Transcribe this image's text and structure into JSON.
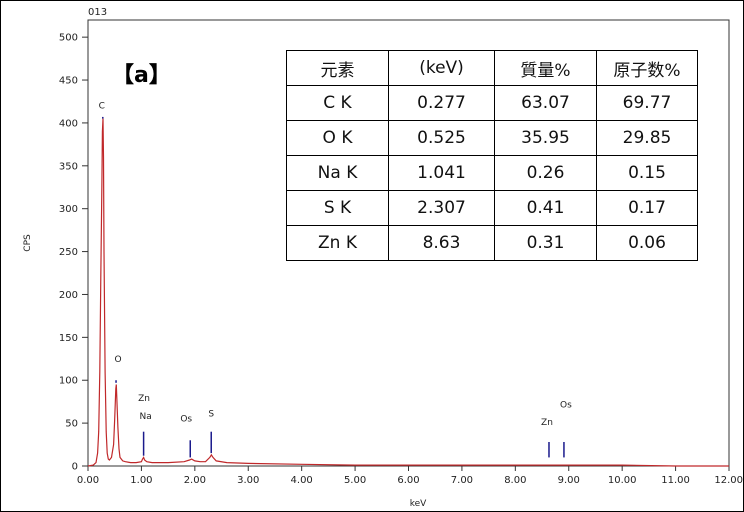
{
  "sample_id": "013",
  "panel_label": "【a】",
  "table": {
    "headers": [
      "元素",
      "(keV)",
      "質量%",
      "原子数%"
    ],
    "rows": [
      [
        "C  K",
        "0.277",
        "63.07",
        "69.77"
      ],
      [
        "O  K",
        "0.525",
        "35.95",
        "29.85"
      ],
      [
        "Na K",
        "1.041",
        "0.26",
        "0.15"
      ],
      [
        "S  K",
        "2.307",
        "0.41",
        "0.17"
      ],
      [
        "Zn K",
        "8.63",
        "0.31",
        "0.06"
      ]
    ]
  },
  "chart_data": {
    "type": "line",
    "xlabel": "keV",
    "ylabel": "CPS",
    "xlim": [
      0,
      12
    ],
    "ylim": [
      0,
      520
    ],
    "x_ticks": [
      "0.00",
      "1.00",
      "2.00",
      "3.00",
      "4.00",
      "5.00",
      "6.00",
      "7.00",
      "8.00",
      "9.00",
      "10.00",
      "11.00",
      "12.00"
    ],
    "y_ticks": [
      "0",
      "50",
      "100",
      "150",
      "200",
      "250",
      "300",
      "350",
      "400",
      "450",
      "500"
    ],
    "series_color": "#c0282a",
    "marker_color": "#1a1a8c",
    "grid": false,
    "spectrum": {
      "x": [
        0.0,
        0.1,
        0.15,
        0.18,
        0.2,
        0.22,
        0.24,
        0.26,
        0.27,
        0.28,
        0.29,
        0.3,
        0.32,
        0.34,
        0.36,
        0.38,
        0.4,
        0.44,
        0.48,
        0.5,
        0.52,
        0.53,
        0.54,
        0.56,
        0.58,
        0.6,
        0.65,
        0.7,
        0.8,
        0.9,
        1.0,
        1.02,
        1.04,
        1.06,
        1.1,
        1.2,
        1.5,
        1.8,
        1.9,
        1.94,
        2.0,
        2.1,
        2.2,
        2.28,
        2.31,
        2.34,
        2.4,
        2.6,
        3.0,
        4.0,
        5.0,
        6.0,
        7.0,
        8.0,
        8.63,
        9.0,
        10.0,
        11.0,
        12.0
      ],
      "y": [
        0,
        1,
        4,
        15,
        40,
        110,
        220,
        330,
        390,
        405,
        360,
        250,
        110,
        40,
        15,
        8,
        7,
        10,
        25,
        55,
        90,
        95,
        80,
        45,
        20,
        10,
        6,
        5,
        4,
        4,
        5,
        8,
        10,
        7,
        5,
        4,
        4,
        5,
        7,
        8,
        6,
        5,
        5,
        10,
        13,
        10,
        6,
        4,
        3,
        2,
        1,
        1,
        1,
        1,
        1,
        1,
        1,
        0,
        0
      ]
    },
    "peaks": [
      {
        "label": "C",
        "x": 0.277,
        "y": 405
      },
      {
        "label": "O",
        "x": 0.525,
        "y": 95
      },
      {
        "label": "Zn",
        "x": 1.012,
        "y": 10
      },
      {
        "label": "Na",
        "x": 1.041,
        "y": 10
      },
      {
        "label": "Os",
        "x": 1.914,
        "y": 8
      },
      {
        "label": "S",
        "x": 2.307,
        "y": 13
      },
      {
        "label": "Zn",
        "x": 8.63,
        "y": 1
      },
      {
        "label": "Os",
        "x": 8.91,
        "y": 1
      }
    ]
  }
}
